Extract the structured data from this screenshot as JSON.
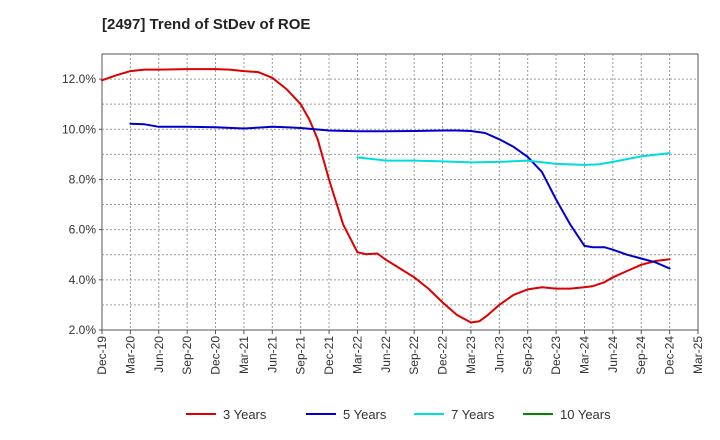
{
  "chart_data": {
    "type": "line",
    "title": "[2497]  Trend of StDev of ROE",
    "xlabel": "",
    "ylabel": "",
    "x_ticks": [
      "Dec-19",
      "Mar-20",
      "Jun-20",
      "Sep-20",
      "Dec-20",
      "Mar-21",
      "Jun-21",
      "Sep-21",
      "Dec-21",
      "Mar-22",
      "Jun-22",
      "Sep-22",
      "Dec-22",
      "Mar-23",
      "Jun-23",
      "Sep-23",
      "Dec-23",
      "Mar-24",
      "Jun-24",
      "Sep-24",
      "Dec-24",
      "Mar-25"
    ],
    "y_ticks": [
      "2.0%",
      "4.0%",
      "6.0%",
      "8.0%",
      "10.0%",
      "12.0%"
    ],
    "ylim": [
      2.0,
      13.0
    ],
    "grid": true,
    "legend_position": "bottom",
    "series": [
      {
        "name": "3 Years",
        "color": "#dd0000",
        "points": [
          [
            0,
            11.95
          ],
          [
            0.5,
            12.15
          ],
          [
            1,
            12.32
          ],
          [
            1.5,
            12.38
          ],
          [
            2,
            12.38
          ],
          [
            3,
            12.4
          ],
          [
            4,
            12.4
          ],
          [
            4.5,
            12.38
          ],
          [
            5,
            12.32
          ],
          [
            5.5,
            12.28
          ],
          [
            6,
            12.05
          ],
          [
            6.5,
            11.6
          ],
          [
            7,
            11.0
          ],
          [
            7.3,
            10.4
          ],
          [
            7.6,
            9.6
          ],
          [
            8,
            8.0
          ],
          [
            8.5,
            6.2
          ],
          [
            9,
            5.1
          ],
          [
            9.3,
            5.02
          ],
          [
            9.7,
            5.05
          ],
          [
            10,
            4.8
          ],
          [
            10.5,
            4.45
          ],
          [
            11,
            4.1
          ],
          [
            11.5,
            3.65
          ],
          [
            12,
            3.1
          ],
          [
            12.5,
            2.6
          ],
          [
            13,
            2.3
          ],
          [
            13.3,
            2.35
          ],
          [
            13.6,
            2.6
          ],
          [
            14,
            3.0
          ],
          [
            14.5,
            3.4
          ],
          [
            15,
            3.62
          ],
          [
            15.5,
            3.7
          ],
          [
            16,
            3.65
          ],
          [
            16.5,
            3.65
          ],
          [
            17,
            3.7
          ],
          [
            17.3,
            3.75
          ],
          [
            17.7,
            3.9
          ],
          [
            18,
            4.1
          ],
          [
            18.5,
            4.35
          ],
          [
            19,
            4.6
          ],
          [
            19.5,
            4.75
          ],
          [
            20,
            4.82
          ]
        ]
      },
      {
        "name": "5 Years",
        "color": "#0000cc",
        "points": [
          [
            1,
            10.22
          ],
          [
            1.5,
            10.2
          ],
          [
            2,
            10.1
          ],
          [
            3,
            10.1
          ],
          [
            4,
            10.08
          ],
          [
            5,
            10.03
          ],
          [
            6,
            10.1
          ],
          [
            6.5,
            10.08
          ],
          [
            7,
            10.05
          ],
          [
            8,
            9.95
          ],
          [
            9,
            9.92
          ],
          [
            10,
            9.92
          ],
          [
            11,
            9.93
          ],
          [
            12,
            9.95
          ],
          [
            12.5,
            9.95
          ],
          [
            13,
            9.93
          ],
          [
            13.5,
            9.85
          ],
          [
            14,
            9.6
          ],
          [
            14.5,
            9.3
          ],
          [
            15,
            8.9
          ],
          [
            15.5,
            8.3
          ],
          [
            16,
            7.2
          ],
          [
            16.5,
            6.2
          ],
          [
            17,
            5.35
          ],
          [
            17.3,
            5.3
          ],
          [
            17.7,
            5.3
          ],
          [
            18,
            5.2
          ],
          [
            18.5,
            5.0
          ],
          [
            19,
            4.85
          ],
          [
            19.5,
            4.7
          ],
          [
            20,
            4.45
          ]
        ]
      },
      {
        "name": "7 Years",
        "color": "#00dddd",
        "points": [
          [
            9,
            8.88
          ],
          [
            10,
            8.75
          ],
          [
            11,
            8.75
          ],
          [
            12,
            8.72
          ],
          [
            13,
            8.68
          ],
          [
            14,
            8.7
          ],
          [
            15,
            8.75
          ],
          [
            16,
            8.62
          ],
          [
            17,
            8.58
          ],
          [
            17.5,
            8.6
          ],
          [
            18,
            8.7
          ],
          [
            19,
            8.92
          ],
          [
            20,
            9.05
          ]
        ]
      },
      {
        "name": "10 Years",
        "color": "#008800",
        "points": []
      }
    ]
  }
}
